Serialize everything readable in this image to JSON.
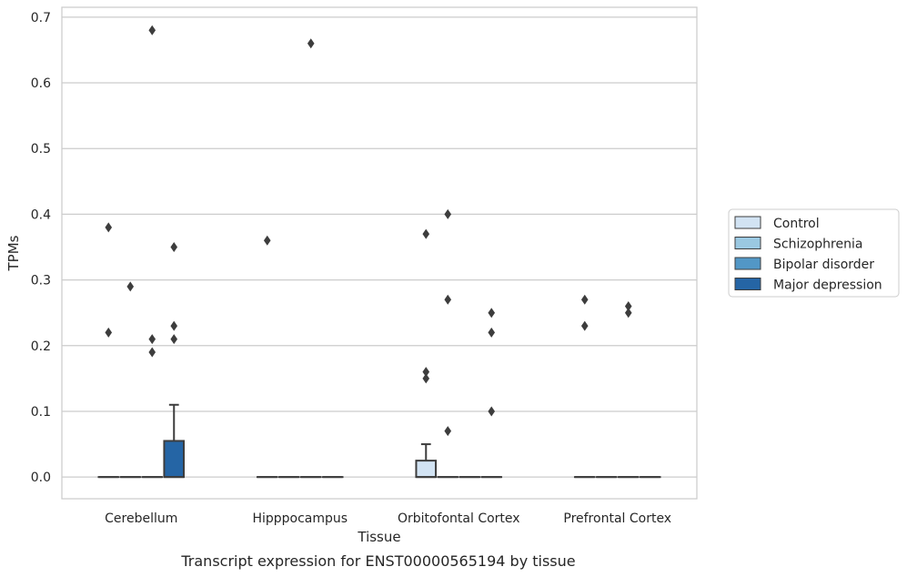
{
  "chart_data": {
    "type": "box",
    "title": "",
    "caption": "Transcript expression for ENST00000565194 by tissue",
    "xlabel": "Tissue",
    "ylabel": "TPMs",
    "ylim": [
      -0.033,
      0.715
    ],
    "yticks": [
      0.0,
      0.1,
      0.2,
      0.3,
      0.4,
      0.5,
      0.6,
      0.7
    ],
    "ytick_labels": [
      "0.0",
      "0.1",
      "0.2",
      "0.3",
      "0.4",
      "0.5",
      "0.6",
      "0.7"
    ],
    "grid": true,
    "legend_position": "right",
    "categories": [
      "Cerebellum",
      "Hipppocampus",
      "Orbitofontal Cortex",
      "Prefrontal Cortex"
    ],
    "series": [
      {
        "name": "Control",
        "color": "#d2e3f3",
        "boxes": [
          {
            "q1": 0,
            "median": 0,
            "q3": 0,
            "whisker_low": 0,
            "whisker_high": 0,
            "outliers": [
              0.38,
              0.22
            ]
          },
          {
            "q1": 0,
            "median": 0,
            "q3": 0,
            "whisker_low": 0,
            "whisker_high": 0,
            "outliers": [
              0.36
            ]
          },
          {
            "q1": 0,
            "median": 0,
            "q3": 0.025,
            "whisker_low": 0,
            "whisker_high": 0.05,
            "outliers": [
              0.16,
              0.15,
              0.37
            ]
          },
          {
            "q1": 0,
            "median": 0,
            "q3": 0,
            "whisker_low": 0,
            "whisker_high": 0,
            "outliers": [
              0.27,
              0.23
            ]
          }
        ]
      },
      {
        "name": "Schizophrenia",
        "color": "#9ac8e1",
        "boxes": [
          {
            "q1": 0,
            "median": 0,
            "q3": 0,
            "whisker_low": 0,
            "whisker_high": 0,
            "outliers": [
              0.29
            ]
          },
          {
            "q1": 0,
            "median": 0,
            "q3": 0,
            "whisker_low": 0,
            "whisker_high": 0,
            "outliers": []
          },
          {
            "q1": 0,
            "median": 0,
            "q3": 0,
            "whisker_low": 0,
            "whisker_high": 0,
            "outliers": [
              0.4,
              0.27,
              0.07
            ]
          },
          {
            "q1": 0,
            "median": 0,
            "q3": 0,
            "whisker_low": 0,
            "whisker_high": 0,
            "outliers": []
          }
        ]
      },
      {
        "name": "Bipolar disorder",
        "color": "#5297c6",
        "boxes": [
          {
            "q1": 0,
            "median": 0,
            "q3": 0,
            "whisker_low": 0,
            "whisker_high": 0,
            "outliers": [
              0.68,
              0.21,
              0.19
            ]
          },
          {
            "q1": 0,
            "median": 0,
            "q3": 0,
            "whisker_low": 0,
            "whisker_high": 0,
            "outliers": [
              0.66
            ]
          },
          {
            "q1": 0,
            "median": 0,
            "q3": 0,
            "whisker_low": 0,
            "whisker_high": 0,
            "outliers": []
          },
          {
            "q1": 0,
            "median": 0,
            "q3": 0,
            "whisker_low": 0,
            "whisker_high": 0,
            "outliers": [
              0.26,
              0.25
            ]
          }
        ]
      },
      {
        "name": "Major depression",
        "color": "#2565a5",
        "boxes": [
          {
            "q1": 0,
            "median": 0,
            "q3": 0.055,
            "whisker_low": 0,
            "whisker_high": 0.11,
            "outliers": [
              0.35,
              0.23,
              0.21
            ]
          },
          {
            "q1": 0,
            "median": 0,
            "q3": 0,
            "whisker_low": 0,
            "whisker_high": 0,
            "outliers": []
          },
          {
            "q1": 0,
            "median": 0,
            "q3": 0,
            "whisker_low": 0,
            "whisker_high": 0,
            "outliers": [
              0.25,
              0.22,
              0.1
            ]
          },
          {
            "q1": 0,
            "median": 0,
            "q3": 0,
            "whisker_low": 0,
            "whisker_high": 0,
            "outliers": []
          }
        ]
      }
    ]
  }
}
